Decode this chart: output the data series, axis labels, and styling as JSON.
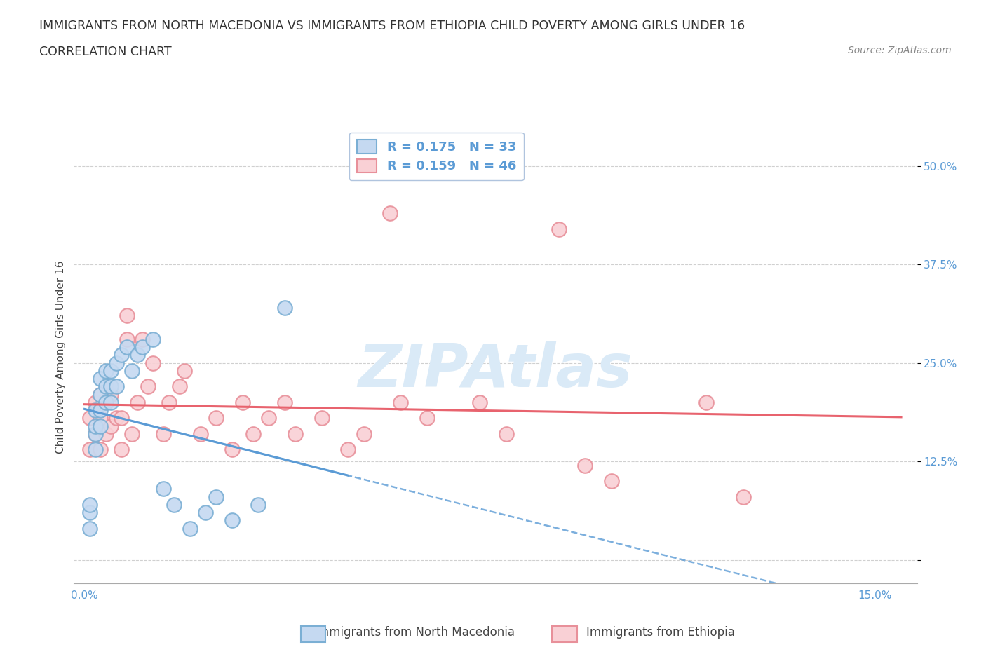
{
  "title": "IMMIGRANTS FROM NORTH MACEDONIA VS IMMIGRANTS FROM ETHIOPIA CHILD POVERTY AMONG GIRLS UNDER 16",
  "subtitle": "CORRELATION CHART",
  "source": "Source: ZipAtlas.com",
  "ylabel": "Child Poverty Among Girls Under 16",
  "y_ticks": [
    0.0,
    0.125,
    0.25,
    0.375,
    0.5
  ],
  "y_tick_labels_right": [
    "",
    "12.5%",
    "25.0%",
    "37.5%",
    "50.0%"
  ],
  "x_tick_positions": [
    0.0,
    0.15
  ],
  "x_tick_labels": [
    "0.0%",
    "15.0%"
  ],
  "xlim": [
    -0.002,
    0.158
  ],
  "ylim": [
    -0.03,
    0.545
  ],
  "legend1_label": "R = 0.175   N = 33",
  "legend2_label": "R = 0.159   N = 46",
  "series1_color": "#c5d9f1",
  "series1_edge": "#7bafd4",
  "series2_color": "#f9d0d5",
  "series2_edge": "#e8909a",
  "line1_color": "#5b9bd5",
  "line2_color": "#e8636e",
  "background_color": "#ffffff",
  "watermark_color": "#daeaf7",
  "watermark_text": "ZIPAtlas",
  "north_macedonia_x": [
    0.001,
    0.001,
    0.001,
    0.002,
    0.002,
    0.002,
    0.002,
    0.003,
    0.003,
    0.003,
    0.003,
    0.004,
    0.004,
    0.004,
    0.005,
    0.005,
    0.005,
    0.006,
    0.006,
    0.007,
    0.008,
    0.009,
    0.01,
    0.011,
    0.013,
    0.015,
    0.017,
    0.02,
    0.023,
    0.025,
    0.028,
    0.033,
    0.038
  ],
  "north_macedonia_y": [
    0.04,
    0.06,
    0.07,
    0.14,
    0.16,
    0.17,
    0.19,
    0.17,
    0.19,
    0.21,
    0.23,
    0.2,
    0.22,
    0.24,
    0.2,
    0.22,
    0.24,
    0.22,
    0.25,
    0.26,
    0.27,
    0.24,
    0.26,
    0.27,
    0.28,
    0.09,
    0.07,
    0.04,
    0.06,
    0.08,
    0.05,
    0.07,
    0.32
  ],
  "ethiopia_x": [
    0.001,
    0.001,
    0.002,
    0.002,
    0.003,
    0.003,
    0.003,
    0.004,
    0.004,
    0.005,
    0.005,
    0.006,
    0.007,
    0.007,
    0.008,
    0.008,
    0.009,
    0.01,
    0.011,
    0.012,
    0.013,
    0.015,
    0.016,
    0.018,
    0.019,
    0.022,
    0.025,
    0.028,
    0.03,
    0.032,
    0.035,
    0.038,
    0.04,
    0.045,
    0.05,
    0.053,
    0.058,
    0.06,
    0.065,
    0.075,
    0.08,
    0.09,
    0.095,
    0.1,
    0.118,
    0.125
  ],
  "ethiopia_y": [
    0.14,
    0.18,
    0.16,
    0.2,
    0.14,
    0.18,
    0.21,
    0.16,
    0.2,
    0.17,
    0.21,
    0.18,
    0.14,
    0.18,
    0.28,
    0.31,
    0.16,
    0.2,
    0.28,
    0.22,
    0.25,
    0.16,
    0.2,
    0.22,
    0.24,
    0.16,
    0.18,
    0.14,
    0.2,
    0.16,
    0.18,
    0.2,
    0.16,
    0.18,
    0.14,
    0.16,
    0.44,
    0.2,
    0.18,
    0.2,
    0.16,
    0.42,
    0.12,
    0.1,
    0.2,
    0.08
  ],
  "title_fontsize": 12.5,
  "subtitle_fontsize": 12.5,
  "axis_label_fontsize": 11,
  "tick_fontsize": 11,
  "legend_fontsize": 13
}
